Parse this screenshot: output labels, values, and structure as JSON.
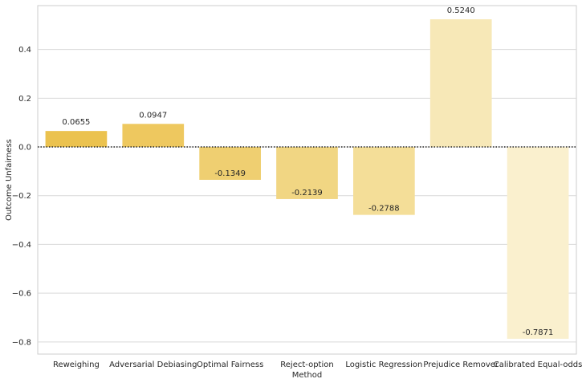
{
  "chart_data": {
    "type": "bar",
    "xlabel": "Method",
    "ylabel": "Outcome Unfairness",
    "categories": [
      "Reweighing",
      "Adversarial Debiasing",
      "Optimal Fairness",
      "Reject-option",
      "Logistic Regression",
      "Prejudice Remover",
      "Calibrated Equal-odds"
    ],
    "values": [
      0.0655,
      0.0947,
      -0.1349,
      -0.2139,
      -0.2788,
      0.524,
      -0.7871
    ],
    "value_labels": [
      "0.0655",
      "0.0947",
      "-0.1349",
      "-0.2139",
      "-0.2788",
      "0.5240",
      "-0.7871"
    ],
    "bar_colors": [
      "#ebc24f",
      "#eec85f",
      "#efcf71",
      "#f1d683",
      "#f4de98",
      "#f7e8b7",
      "#faf0ce"
    ],
    "ylim": [
      -0.85,
      0.58
    ],
    "yticks": [
      -0.8,
      -0.6,
      -0.4,
      -0.2,
      0.0,
      0.2,
      0.4
    ],
    "ytick_labels": [
      "−0.8",
      "−0.6",
      "−0.4",
      "−0.2",
      "0.0",
      "0.2",
      "0.4"
    ],
    "zero_line": "dotted",
    "grid": true,
    "grid_color": "#d9d9d9"
  }
}
